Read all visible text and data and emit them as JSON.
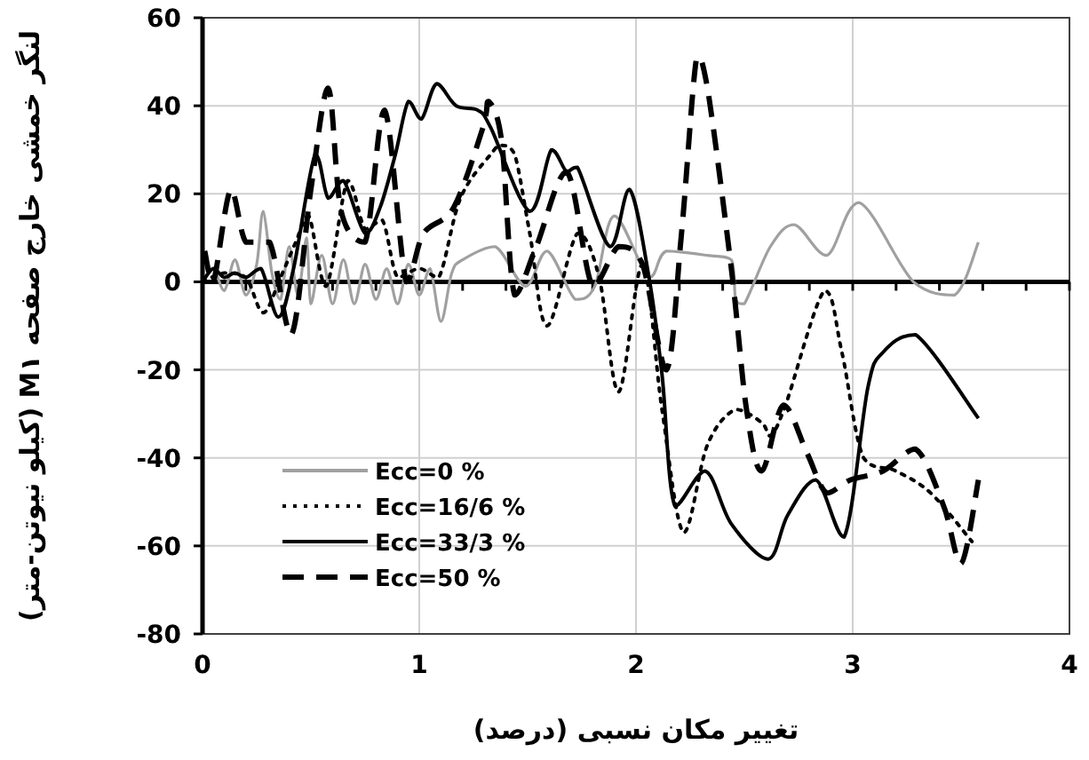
{
  "chart_data": {
    "type": "line",
    "xlabel": "تغییر مکان نسبی (درصد)",
    "ylabel": "لنگر خمشی خارج صفحه M۱ (کیلو نیوتن-متر)",
    "xlim": [
      0,
      4
    ],
    "ylim": [
      -80,
      60
    ],
    "xticks": [
      0,
      {
        "value": 0.2,
        "label": null
      },
      {
        "value": 0.4,
        "label": null
      },
      {
        "value": 0.6,
        "label": null
      },
      {
        "value": 0.8,
        "label": null
      },
      1,
      {
        "value": 1.2,
        "label": null
      },
      {
        "value": 1.4,
        "label": null
      },
      {
        "value": 1.6,
        "label": null
      },
      {
        "value": 1.8,
        "label": null
      },
      2,
      {
        "value": 2.2,
        "label": null
      },
      {
        "value": 2.4,
        "label": null
      },
      {
        "value": 2.6,
        "label": null
      },
      {
        "value": 2.8,
        "label": null
      },
      3,
      {
        "value": 3.2,
        "label": null
      },
      {
        "value": 3.4,
        "label": null
      },
      {
        "value": 3.6,
        "label": null
      },
      {
        "value": 3.8,
        "label": null
      },
      4
    ],
    "yticks": [
      -80,
      -60,
      -40,
      -20,
      0,
      20,
      40,
      60
    ],
    "grid": true,
    "legend": "bottom left",
    "marker": "none",
    "series": [
      {
        "name": "Ecc=0 %",
        "color": "#a0a0a0",
        "line_style": "solid",
        "x": [
          0,
          0.05,
          0.1,
          0.15,
          0.2,
          0.25,
          0.28,
          0.32,
          0.36,
          0.4,
          0.44,
          0.48,
          0.5,
          0.55,
          0.6,
          0.65,
          0.7,
          0.75,
          0.8,
          0.85,
          0.9,
          0.95,
          1.0,
          1.05,
          1.1,
          1.15,
          1.2,
          1.35,
          1.49,
          1.59,
          1.72,
          1.81,
          1.9,
          2.06,
          2.14,
          2.33,
          2.44,
          2.46,
          2.5,
          2.62,
          2.73,
          2.88,
          3.03,
          3.28,
          3.47,
          3.58
        ],
        "values": [
          0,
          3,
          -2,
          5,
          -3,
          4,
          16,
          2,
          -4,
          8,
          -3,
          10,
          -5,
          6,
          -5,
          5,
          -5,
          4,
          -4,
          3,
          -5,
          4,
          -3,
          3,
          -9,
          2,
          5,
          8,
          -1,
          7,
          -4,
          -1,
          15,
          1,
          7,
          6,
          5,
          -4,
          -5,
          8,
          13,
          6,
          18,
          0,
          -3,
          9
        ]
      },
      {
        "name": "Ecc=16/6 %",
        "color": "#000000",
        "line_style": "dotted",
        "x": [
          0,
          0.1,
          0.2,
          0.28,
          0.36,
          0.43,
          0.49,
          0.57,
          0.67,
          0.75,
          0.83,
          0.9,
          1.0,
          1.09,
          1.19,
          1.33,
          1.38,
          1.44,
          1.51,
          1.59,
          1.73,
          1.83,
          1.92,
          2.03,
          2.12,
          2.22,
          2.33,
          2.46,
          2.58,
          2.62,
          2.69,
          2.87,
          2.95,
          3.05,
          3.2,
          3.36,
          3.55
        ],
        "values": [
          0,
          2,
          1,
          -7,
          1,
          9,
          15,
          -1,
          23,
          12,
          14,
          1,
          3,
          1,
          19,
          29,
          31,
          29,
          11,
          -10,
          11,
          1,
          -25,
          4,
          -29,
          -57,
          -37,
          -29,
          -32,
          -35,
          -28,
          -2,
          -16,
          -40,
          -43,
          -48,
          -59
        ]
      },
      {
        "name": "Ecc=33/3 %",
        "color": "#000000",
        "line_style": "solid",
        "x": [
          0,
          0.05,
          0.1,
          0.15,
          0.2,
          0.27,
          0.35,
          0.42,
          0.52,
          0.58,
          0.65,
          0.75,
          0.82,
          0.89,
          0.95,
          1.01,
          1.08,
          1.17,
          1.27,
          1.33,
          1.51,
          1.61,
          1.68,
          1.73,
          1.88,
          1.97,
          2.06,
          2.12,
          2.18,
          2.32,
          2.44,
          2.61,
          2.7,
          2.83,
          2.96,
          3.07,
          3.14,
          3.29,
          3.58
        ],
        "values": [
          0,
          3,
          1,
          2,
          1,
          3,
          -8,
          3,
          29,
          19,
          23,
          11,
          17,
          29,
          41,
          37,
          45,
          40,
          39,
          35,
          16,
          30,
          25,
          26,
          8,
          21,
          1,
          -21,
          -51,
          -43,
          -55,
          -63,
          -53,
          -45,
          -58,
          -24,
          -16,
          -12,
          -31
        ]
      },
      {
        "name": "Ecc=50 %",
        "color": "#000000",
        "line_style": "dashed",
        "x": [
          0.01,
          0.05,
          0.13,
          0.2,
          0.31,
          0.41,
          0.5,
          0.58,
          0.64,
          0.75,
          0.84,
          0.94,
          1.02,
          1.16,
          1.3,
          1.32,
          1.38,
          1.44,
          1.54,
          1.68,
          1.8,
          1.92,
          2.03,
          2.14,
          2.21,
          2.28,
          2.33,
          2.44,
          2.51,
          2.58,
          2.68,
          2.79,
          2.88,
          2.99,
          3.14,
          3.29,
          3.42,
          3.5,
          3.58
        ],
        "values": [
          7,
          0,
          21,
          9,
          9,
          -12,
          21,
          44,
          16,
          9,
          39,
          0,
          11,
          17,
          36,
          41,
          32,
          -3,
          8,
          25,
          -1,
          8,
          4,
          -20,
          11,
          51,
          44,
          3,
          -29,
          -43,
          -28,
          -39,
          -48,
          -45,
          -43,
          -38,
          -51,
          -64,
          -45
        ]
      }
    ]
  }
}
